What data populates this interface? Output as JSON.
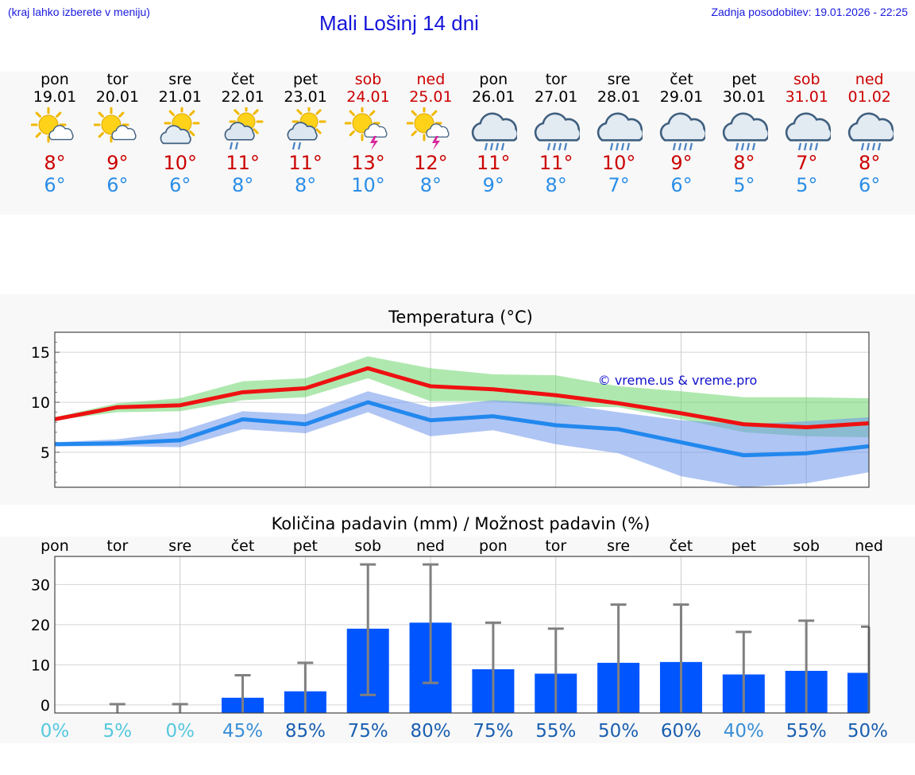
{
  "header": {
    "menu_hint": "(kraj lahko izberete v meniju)",
    "title": "Mali Lošinj 14 dni",
    "updated": "Zadnja posodobitev: 19.01.2026 - 22:25"
  },
  "days": [
    {
      "name": "pon",
      "date": "19.01",
      "weekend": false,
      "icon": "sun-cloud-icon",
      "tmax": "8°",
      "tmin": "6°"
    },
    {
      "name": "tor",
      "date": "20.01",
      "weekend": false,
      "icon": "sun-cloud-icon",
      "tmax": "9°",
      "tmin": "6°"
    },
    {
      "name": "sre",
      "date": "21.01",
      "weekend": false,
      "icon": "partly-cloudy-icon",
      "tmax": "10°",
      "tmin": "6°"
    },
    {
      "name": "čet",
      "date": "22.01",
      "weekend": false,
      "icon": "sun-rain-icon",
      "tmax": "11°",
      "tmin": "8°"
    },
    {
      "name": "pet",
      "date": "23.01",
      "weekend": false,
      "icon": "sun-rain-icon",
      "tmax": "11°",
      "tmin": "8°"
    },
    {
      "name": "sob",
      "date": "24.01",
      "weekend": true,
      "icon": "sun-thunder-icon",
      "tmax": "13°",
      "tmin": "10°"
    },
    {
      "name": "ned",
      "date": "25.01",
      "weekend": true,
      "icon": "sun-thunder-icon",
      "tmax": "12°",
      "tmin": "8°"
    },
    {
      "name": "pon",
      "date": "26.01",
      "weekend": false,
      "icon": "rain-cloud-icon",
      "tmax": "11°",
      "tmin": "9°"
    },
    {
      "name": "tor",
      "date": "27.01",
      "weekend": false,
      "icon": "rain-cloud-icon",
      "tmax": "11°",
      "tmin": "8°"
    },
    {
      "name": "sre",
      "date": "28.01",
      "weekend": false,
      "icon": "rain-cloud-icon",
      "tmax": "10°",
      "tmin": "7°"
    },
    {
      "name": "čet",
      "date": "29.01",
      "weekend": false,
      "icon": "rain-cloud-icon",
      "tmax": "9°",
      "tmin": "6°"
    },
    {
      "name": "pet",
      "date": "30.01",
      "weekend": false,
      "icon": "rain-cloud-icon",
      "tmax": "8°",
      "tmin": "5°"
    },
    {
      "name": "sob",
      "date": "31.01",
      "weekend": true,
      "icon": "rain-cloud-icon",
      "tmax": "7°",
      "tmin": "5°"
    },
    {
      "name": "ned",
      "date": "01.02",
      "weekend": true,
      "icon": "rain-cloud-icon",
      "tmax": "8°",
      "tmin": "6°"
    }
  ],
  "colors": {
    "weekend": "#cc0000",
    "weekday": "#000000",
    "tmax": "#cc0000",
    "tmin": "#2a8ee8",
    "bars": "#0055ff"
  },
  "chart_data": [
    {
      "type": "line",
      "title": "Temperatura (°C)",
      "watermark": "© vreme.us & vreme.pro",
      "ylim": [
        1.5,
        17
      ],
      "yticks": [
        5,
        10,
        15
      ],
      "x": [
        0,
        1,
        2,
        3,
        4,
        5,
        6,
        7,
        8,
        9,
        10,
        11,
        12,
        13
      ],
      "series": [
        {
          "name": "max",
          "color": "#ee1111",
          "values": [
            8.3,
            9.5,
            9.7,
            11.0,
            11.4,
            13.4,
            11.6,
            11.3,
            10.7,
            9.9,
            8.9,
            7.8,
            7.5,
            7.9
          ],
          "band_low": [
            8.2,
            9.0,
            9.1,
            10.2,
            10.5,
            12.4,
            10.1,
            10.1,
            9.6,
            9.5,
            8.3,
            7.0,
            6.6,
            6.5
          ],
          "band_high": [
            8.5,
            9.9,
            10.4,
            12.1,
            12.4,
            14.6,
            13.4,
            12.8,
            12.7,
            11.6,
            11.1,
            10.5,
            10.5,
            10.4
          ]
        },
        {
          "name": "min",
          "color": "#2288ee",
          "values": [
            5.8,
            5.9,
            6.2,
            8.3,
            7.8,
            10.0,
            8.2,
            8.6,
            7.7,
            7.3,
            6.0,
            4.7,
            4.9,
            5.6
          ],
          "band_low": [
            5.6,
            5.6,
            5.5,
            7.3,
            6.9,
            9.0,
            6.6,
            7.2,
            5.8,
            4.9,
            2.6,
            1.5,
            1.9,
            3.0
          ],
          "band_high": [
            6.0,
            6.3,
            7.1,
            9.1,
            8.8,
            11.1,
            9.5,
            10.2,
            9.9,
            9.0,
            8.2,
            7.8,
            8.1,
            8.5
          ]
        }
      ]
    },
    {
      "type": "bar",
      "title": "Količina padavin (mm) / Možnost padavin (%)",
      "categories": [
        "pon",
        "tor",
        "sre",
        "čet",
        "pet",
        "sob",
        "ned",
        "pon",
        "tor",
        "sre",
        "čet",
        "pet",
        "sob",
        "ned"
      ],
      "ylim": [
        -2,
        37
      ],
      "yticks": [
        0,
        10,
        20,
        30
      ],
      "values": [
        0,
        0,
        0,
        1.8,
        3.4,
        19.0,
        20.5,
        8.9,
        7.8,
        10.5,
        10.7,
        7.6,
        8.5,
        8.0
      ],
      "error_low": [
        0,
        0,
        0,
        0,
        0,
        2.5,
        5.5,
        0,
        0,
        0,
        0,
        0,
        0,
        0
      ],
      "error_high": [
        0,
        0.2,
        0.2,
        7.4,
        10.5,
        35.0,
        35.0,
        20.5,
        19.0,
        25.0,
        25.0,
        18.2,
        21.0,
        19.5
      ],
      "probabilities": [
        "0%",
        "5%",
        "0%",
        "45%",
        "85%",
        "75%",
        "80%",
        "75%",
        "55%",
        "50%",
        "60%",
        "40%",
        "55%",
        "50%"
      ],
      "probability_values": [
        0,
        5,
        0,
        45,
        85,
        75,
        80,
        75,
        55,
        50,
        60,
        40,
        55,
        50
      ]
    }
  ]
}
